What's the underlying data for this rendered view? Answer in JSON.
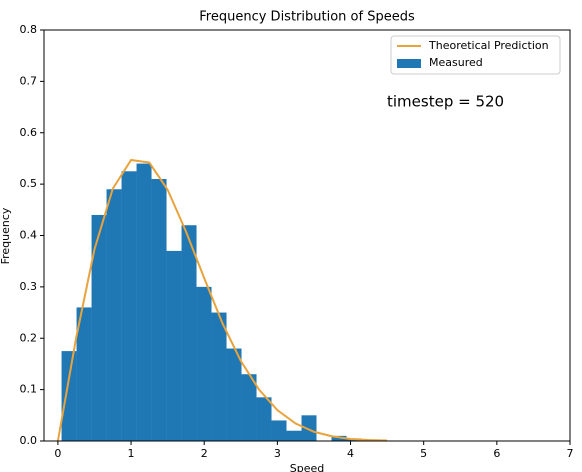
{
  "chart_data": {
    "type": "histogram",
    "title": "Frequency Distribution of Speeds",
    "xlabel": "Speed",
    "ylabel": "Frequency",
    "annotation": "timestep = 520",
    "legend": "upper right",
    "xlim": [
      -0.19,
      7
    ],
    "ylim": [
      0,
      0.8
    ],
    "xticks": [
      0,
      1,
      2,
      3,
      4,
      5,
      6,
      7
    ],
    "yticks": [
      {
        "value": 0,
        "label": "0.0"
      },
      0.1,
      0.2,
      0.3,
      0.4,
      0.5,
      0.6,
      0.7,
      0.8
    ],
    "series": [
      {
        "name": "Theoretical Prediction",
        "type": "line",
        "color": "#e8a33c",
        "x": [
          0,
          0.25,
          0.5,
          0.75,
          1.0,
          1.25,
          1.5,
          1.75,
          2.0,
          2.25,
          2.5,
          2.75,
          3.0,
          3.25,
          3.5,
          3.75,
          4.0,
          4.25,
          4.5
        ],
        "values": [
          0,
          0.201,
          0.373,
          0.491,
          0.547,
          0.542,
          0.489,
          0.408,
          0.317,
          0.229,
          0.156,
          0.1,
          0.06,
          0.034,
          0.018,
          0.009,
          0.004,
          0.002,
          0.0009
        ]
      },
      {
        "name": "Measured",
        "type": "histogram",
        "color": "#1f77b4",
        "bins": [
          0.05,
          0.255,
          0.46,
          0.665,
          0.87,
          1.075,
          1.28,
          1.485,
          1.69,
          1.895,
          2.1,
          2.305,
          2.51,
          2.715,
          2.92,
          3.125,
          3.33,
          3.535,
          3.74,
          3.945,
          4.15
        ],
        "counts": [
          0.175,
          0.26,
          0.44,
          0.49,
          0.525,
          0.54,
          0.51,
          0.37,
          0.42,
          0.3,
          0.25,
          0.18,
          0.13,
          0.085,
          0.04,
          0.02,
          0.05,
          0,
          0.01,
          0.005
        ]
      }
    ]
  }
}
